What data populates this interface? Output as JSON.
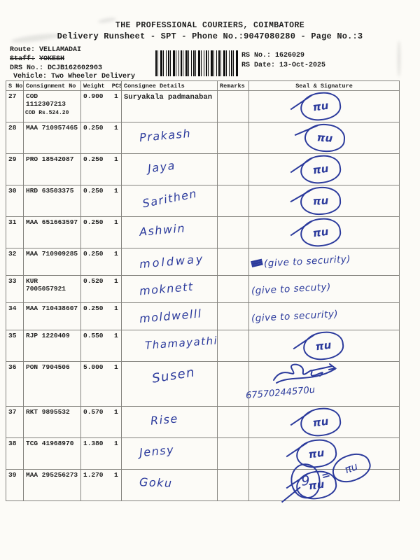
{
  "colors": {
    "ink_blue": "#2b3a9c",
    "print_black": "#1f1f1f",
    "paper": "#fcfbf7"
  },
  "header": {
    "title": "THE PROFESSIONAL COURIERS, COIMBATORE",
    "subtitle": "Delivery Runsheet - SPT - Phone No.:9047080280 - Page No.:3",
    "route_label": "Route:",
    "route": "VELLAMADAI",
    "staff_label": "Staff:",
    "staff": "YOKESH",
    "drs_label": "DRS No.:",
    "drs": "DCJB162602903",
    "vehicle_label": "Vehicle:",
    "vehicle": "Two Wheeler Delivery",
    "rs_no_label": "RS No.:",
    "rs_no": "1626029",
    "rs_date_label": "RS Date:",
    "rs_date": "13-Oct-2025",
    "barcode": "barcode"
  },
  "table": {
    "columns": [
      "S No",
      "Consignment No",
      "Weight  PCS",
      "Consignee Details",
      "Remarks",
      "Seal & Signature"
    ],
    "rows": [
      {
        "sno": "27",
        "consignment": "COD 1112307213",
        "note": "COD Rs.524.20",
        "weight": "0.900",
        "pcs": "1",
        "consignee": "Suryakala padmanaban",
        "handwritten": false,
        "remarks": "",
        "signature": {
          "style": "circle",
          "text": "πu"
        }
      },
      {
        "sno": "28",
        "consignment": "MAA 710957465",
        "weight": "0.250",
        "pcs": "1",
        "consignee": "Prakash",
        "handwritten": true,
        "remarks": "",
        "signature": {
          "style": "circle",
          "text": "πu"
        }
      },
      {
        "sno": "29",
        "consignment": "PRO 18542087",
        "weight": "0.250",
        "pcs": "1",
        "consignee": "Jaya",
        "handwritten": true,
        "remarks": "",
        "signature": {
          "style": "circle",
          "text": "πu"
        }
      },
      {
        "sno": "30",
        "consignment": "HRD 63503375",
        "weight": "0.250",
        "pcs": "1",
        "consignee": "Sarithen",
        "handwritten": true,
        "remarks": "",
        "signature": {
          "style": "circle",
          "text": "πu"
        }
      },
      {
        "sno": "31",
        "consignment": "MAA 651663597",
        "weight": "0.250",
        "pcs": "1",
        "consignee": "Ashwin",
        "handwritten": true,
        "remarks": "",
        "signature": {
          "style": "circle",
          "text": "πu"
        }
      },
      {
        "sno": "32",
        "consignment": "MAA 710909285",
        "weight": "0.250",
        "pcs": "1",
        "consignee": "moldway",
        "handwritten": true,
        "remarks": "",
        "signature": {
          "style": "note",
          "text": "(give to security)",
          "scratched": true
        }
      },
      {
        "sno": "33",
        "consignment": "KUR 7005057921",
        "weight": "0.520",
        "pcs": "1",
        "consignee": "moknett",
        "handwritten": true,
        "remarks": "",
        "signature": {
          "style": "note",
          "text": "(give to secuty)",
          "scratched": false
        }
      },
      {
        "sno": "34",
        "consignment": "MAA 710438607",
        "weight": "0.250",
        "pcs": "1",
        "consignee": "moldwelll",
        "handwritten": true,
        "remarks": "",
        "signature": {
          "style": "note",
          "text": "(give to security)",
          "scratched": false
        }
      },
      {
        "sno": "35",
        "consignment": "RJP 1220409",
        "weight": "0.550",
        "pcs": "1",
        "consignee": "Thamayathi",
        "handwritten": true,
        "remarks": "",
        "signature": {
          "style": "circle",
          "text": "πu"
        }
      },
      {
        "sno": "36",
        "consignment": "PON 7904506",
        "weight": "5.000",
        "pcs": "1",
        "consignee": "Susen",
        "handwritten": true,
        "remarks": "",
        "signature": {
          "style": "scribble",
          "number": "67570244570u"
        }
      },
      {
        "sno": "37",
        "consignment": "RKT 9895532",
        "weight": "0.570",
        "pcs": "1",
        "consignee": "Rise",
        "handwritten": true,
        "remarks": "",
        "signature": {
          "style": "circle",
          "text": "πu"
        }
      },
      {
        "sno": "38",
        "consignment": "TCG 41968970",
        "weight": "1.380",
        "pcs": "1",
        "consignee": "Jensy",
        "handwritten": true,
        "remarks": "",
        "signature": {
          "style": "circle",
          "text": "πu"
        }
      },
      {
        "sno": "39",
        "consignment": "MAA 295256273",
        "weight": "1.270",
        "pcs": "1",
        "consignee": "Goku",
        "handwritten": true,
        "remarks": "",
        "signature": {
          "style": "circle",
          "text": "πu"
        }
      }
    ]
  },
  "footer_mark": {
    "circle_text": "9",
    "equals": "=",
    "ellipse_text": "πu"
  }
}
